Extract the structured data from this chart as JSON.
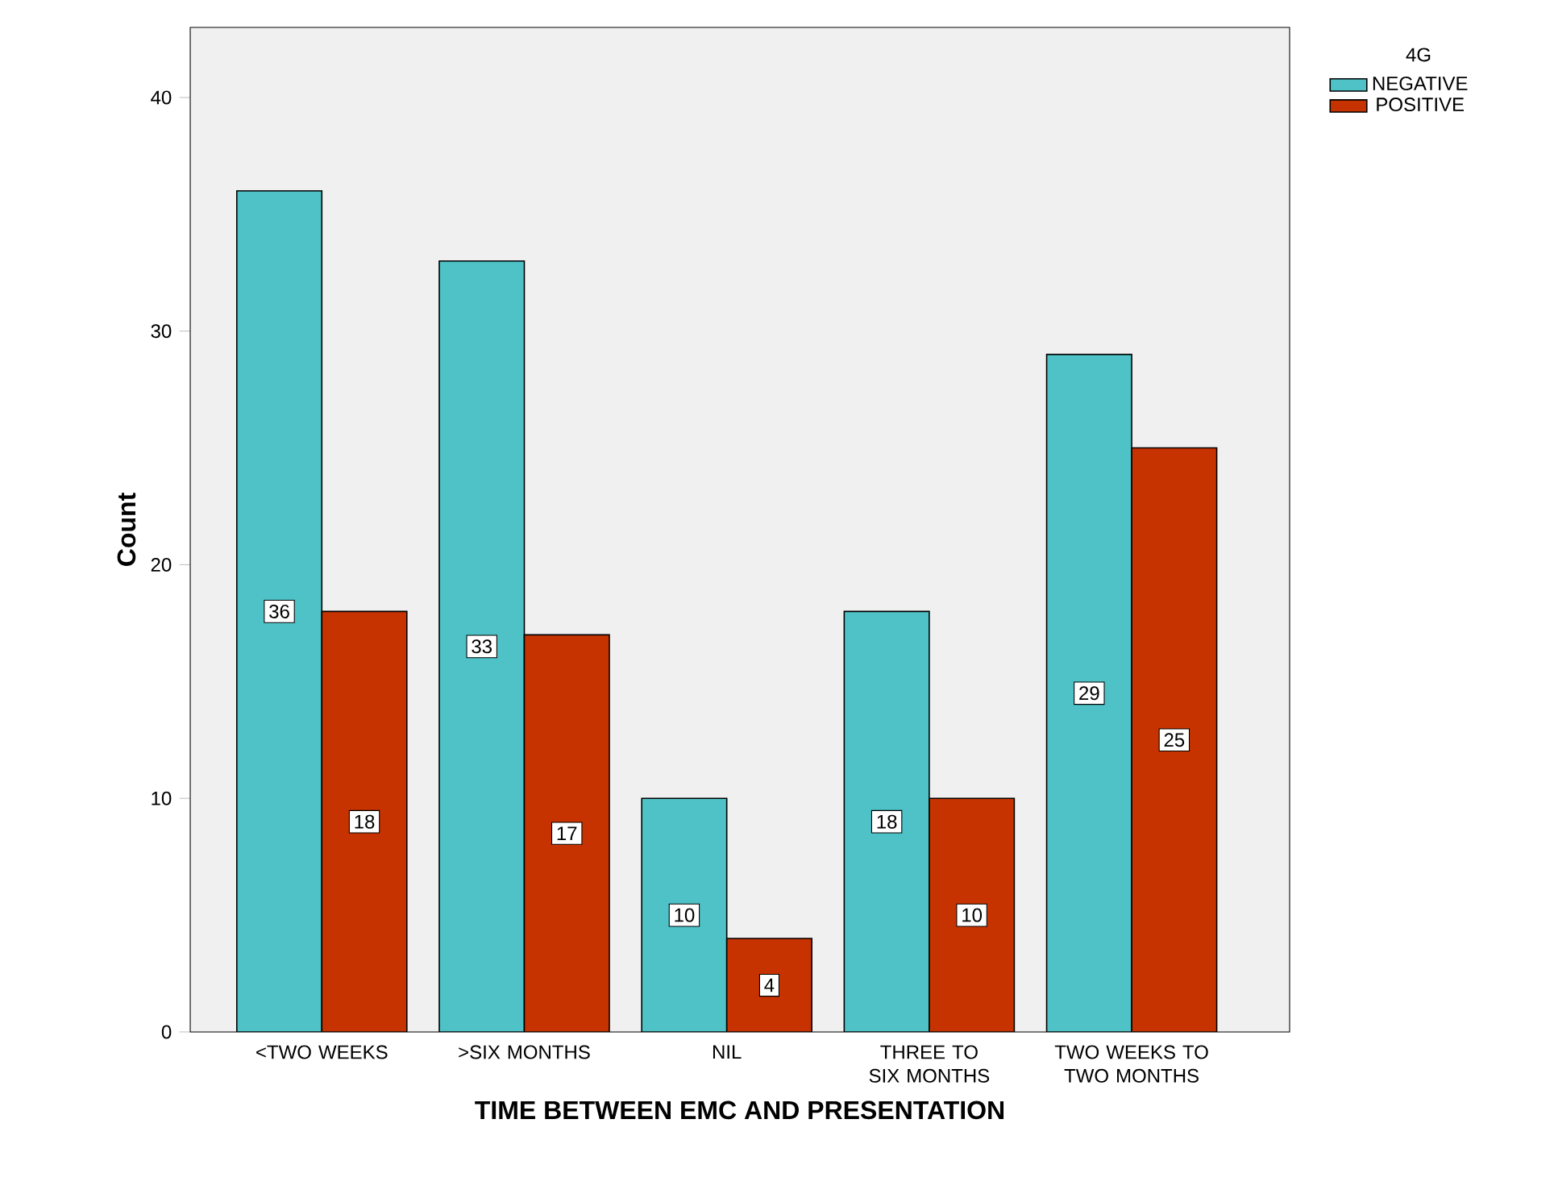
{
  "chart_data": {
    "type": "bar",
    "xlabel": "TIME BETWEEN EMC AND PRESENTATION",
    "ylabel": "Count",
    "legend_title": "4G",
    "categories": [
      "<TWO WEEKS",
      ">SIX MONTHS",
      "NIL",
      "THREE TO SIX MONTHS",
      "TWO WEEKS TO TWO MONTHS"
    ],
    "series": [
      {
        "name": "NEGATIVE",
        "color": "#4ec2c6",
        "values": [
          36,
          33,
          10,
          18,
          29
        ]
      },
      {
        "name": "POSITIVE",
        "color": "#c73300",
        "values": [
          18,
          17,
          4,
          10,
          25
        ]
      }
    ],
    "ylim": [
      0,
      43
    ],
    "yticks": [
      0,
      10,
      20,
      30,
      40
    ],
    "data_labels": true,
    "legend": "top right",
    "grid": false
  }
}
